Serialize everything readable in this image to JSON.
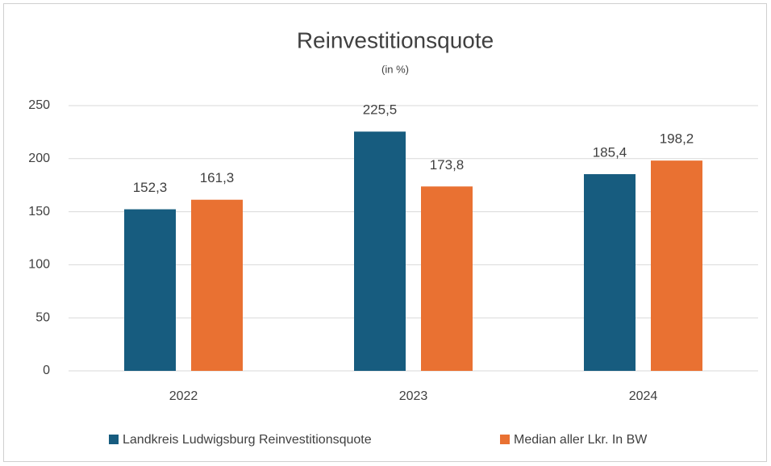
{
  "chart_data": {
    "type": "bar",
    "title": "Reinvestitionsquote",
    "subtitle": "(in %)",
    "categories": [
      "2022",
      "2023",
      "2024"
    ],
    "series": [
      {
        "name": "Landkreis Ludwigsburg Reinvestitionsquote",
        "color": "#175c7f",
        "values": [
          152.3,
          225.5,
          185.4
        ],
        "value_labels": [
          "152,3",
          "225,5",
          "185,4"
        ]
      },
      {
        "name": "Median aller Lkr. In BW",
        "color": "#e97132",
        "values": [
          161.3,
          173.8,
          198.2
        ],
        "value_labels": [
          "161,3",
          "173,8",
          "198,2"
        ]
      }
    ],
    "ylim": [
      0,
      250
    ],
    "yticks": [
      0,
      50,
      100,
      150,
      200,
      250
    ],
    "grid": true,
    "legend": "bottom"
  }
}
